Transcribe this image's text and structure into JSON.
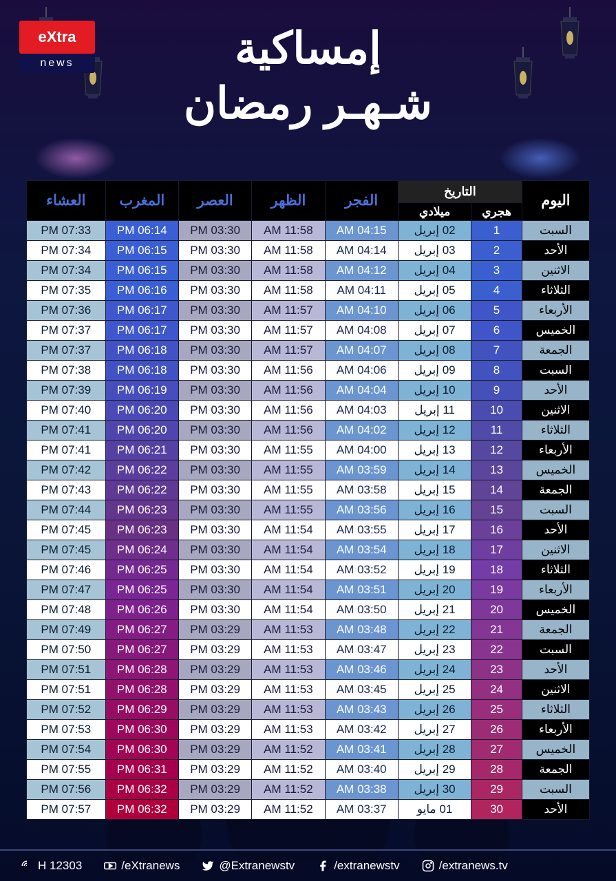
{
  "logo": {
    "top": "eXtra",
    "bottom": "news"
  },
  "title_line1": "إمساكية",
  "title_line2": "شـهـر رمضان",
  "headers": {
    "day": "اليوم",
    "date": "التاريخ",
    "hijri": "هجري",
    "miladi": "ميلادي",
    "fajr": "الفجر",
    "dhuhr": "الظهر",
    "asr": "العصر",
    "maghrib": "المغرب",
    "isha": "العشاء"
  },
  "month_april": "إبريل",
  "month_may": "مايو",
  "hijri_colors": [
    "#3c5fd0",
    "#3c5fd0",
    "#3c5fd0",
    "#3c5fd0",
    "#4055c8",
    "#4055c8",
    "#4253c0",
    "#4253c0",
    "#4550b8",
    "#4a4cb0",
    "#504aa8",
    "#5548a0",
    "#5a469c",
    "#604498",
    "#654294",
    "#6a409a",
    "#6f3ea0",
    "#743ca6",
    "#7a3aa0",
    "#7f389a",
    "#843694",
    "#89348e",
    "#8e3288",
    "#933082",
    "#982e7c",
    "#9d2c76",
    "#a22a70",
    "#a7286a",
    "#ac2664",
    "#b1245e"
  ],
  "maghrib_colors": [
    "#3a5ed4",
    "#3a5ed4",
    "#3a5ed4",
    "#3a5ed4",
    "#3f57cc",
    "#3f57cc",
    "#4252c4",
    "#4252c4",
    "#464dbc",
    "#4b49b4",
    "#5045ac",
    "#5541a4",
    "#5a3d9c",
    "#5f3994",
    "#64358c",
    "#693184",
    "#6f2d8c",
    "#742990",
    "#792594",
    "#7e218c",
    "#831d84",
    "#88197c",
    "#8d1574",
    "#92116c",
    "#970d64",
    "#9c095c",
    "#a10554",
    "#a6014c",
    "#ab0044",
    "#b0003c"
  ],
  "rows": [
    {
      "day": "السبت",
      "hijri": "1",
      "miladi": "02",
      "fajr": "04:15 AM",
      "dhuhr": "11:58 AM",
      "asr": "03:30 PM",
      "maghrib": "06:14 PM",
      "isha": "07:33 PM"
    },
    {
      "day": "الأحد",
      "hijri": "2",
      "miladi": "03",
      "fajr": "04:14 AM",
      "dhuhr": "11:58 AM",
      "asr": "03:30 PM",
      "maghrib": "06:15 PM",
      "isha": "07:34 PM"
    },
    {
      "day": "الاثنين",
      "hijri": "3",
      "miladi": "04",
      "fajr": "04:12 AM",
      "dhuhr": "11:58 AM",
      "asr": "03:30 PM",
      "maghrib": "06:15 PM",
      "isha": "07:34 PM"
    },
    {
      "day": "الثلاثاء",
      "hijri": "4",
      "miladi": "05",
      "fajr": "04:11 AM",
      "dhuhr": "11:58 AM",
      "asr": "03:30 PM",
      "maghrib": "06:16 PM",
      "isha": "07:35 PM"
    },
    {
      "day": "الأربعاء",
      "hijri": "5",
      "miladi": "06",
      "fajr": "04:10 AM",
      "dhuhr": "11:57 AM",
      "asr": "03:30 PM",
      "maghrib": "06:17 PM",
      "isha": "07:36 PM"
    },
    {
      "day": "الخميس",
      "hijri": "6",
      "miladi": "07",
      "fajr": "04:08 AM",
      "dhuhr": "11:57 AM",
      "asr": "03:30 PM",
      "maghrib": "06:17 PM",
      "isha": "07:37 PM"
    },
    {
      "day": "الجمعة",
      "hijri": "7",
      "miladi": "08",
      "fajr": "04:07 AM",
      "dhuhr": "11:57 AM",
      "asr": "03:30 PM",
      "maghrib": "06:18 PM",
      "isha": "07:37 PM"
    },
    {
      "day": "السبت",
      "hijri": "8",
      "miladi": "09",
      "fajr": "04:06 AM",
      "dhuhr": "11:56 AM",
      "asr": "03:30 PM",
      "maghrib": "06:18 PM",
      "isha": "07:38 PM"
    },
    {
      "day": "الأحد",
      "hijri": "9",
      "miladi": "10",
      "fajr": "04:04 AM",
      "dhuhr": "11:56 AM",
      "asr": "03:30 PM",
      "maghrib": "06:19 PM",
      "isha": "07:39 PM"
    },
    {
      "day": "الاثنين",
      "hijri": "10",
      "miladi": "11",
      "fajr": "04:03 AM",
      "dhuhr": "11:56 AM",
      "asr": "03:30 PM",
      "maghrib": "06:20 PM",
      "isha": "07:40 PM"
    },
    {
      "day": "الثلاثاء",
      "hijri": "11",
      "miladi": "12",
      "fajr": "04:02 AM",
      "dhuhr": "11:56 AM",
      "asr": "03:30 PM",
      "maghrib": "06:20 PM",
      "isha": "07:41 PM"
    },
    {
      "day": "الأربعاء",
      "hijri": "12",
      "miladi": "13",
      "fajr": "04:00 AM",
      "dhuhr": "11:55 AM",
      "asr": "03:30 PM",
      "maghrib": "06:21 PM",
      "isha": "07:41 PM"
    },
    {
      "day": "الخميس",
      "hijri": "13",
      "miladi": "14",
      "fajr": "03:59 AM",
      "dhuhr": "11:55 AM",
      "asr": "03:30 PM",
      "maghrib": "06:22 PM",
      "isha": "07:42 PM"
    },
    {
      "day": "الجمعة",
      "hijri": "14",
      "miladi": "15",
      "fajr": "03:58 AM",
      "dhuhr": "11:55 AM",
      "asr": "03:30 PM",
      "maghrib": "06:22 PM",
      "isha": "07:43 PM"
    },
    {
      "day": "السبت",
      "hijri": "15",
      "miladi": "16",
      "fajr": "03:56 AM",
      "dhuhr": "11:55 AM",
      "asr": "03:30 PM",
      "maghrib": "06:23 PM",
      "isha": "07:44 PM"
    },
    {
      "day": "الأحد",
      "hijri": "16",
      "miladi": "17",
      "fajr": "03:55 AM",
      "dhuhr": "11:54 AM",
      "asr": "03:30 PM",
      "maghrib": "06:23 PM",
      "isha": "07:45 PM"
    },
    {
      "day": "الاثنين",
      "hijri": "17",
      "miladi": "18",
      "fajr": "03:54 AM",
      "dhuhr": "11:54 AM",
      "asr": "03:30 PM",
      "maghrib": "06:24 PM",
      "isha": "07:45 PM"
    },
    {
      "day": "الثلاثاء",
      "hijri": "18",
      "miladi": "19",
      "fajr": "03:52 AM",
      "dhuhr": "11:54 AM",
      "asr": "03:30 PM",
      "maghrib": "06:25 PM",
      "isha": "07:46 PM"
    },
    {
      "day": "الأربعاء",
      "hijri": "19",
      "miladi": "20",
      "fajr": "03:51 AM",
      "dhuhr": "11:54 AM",
      "asr": "03:30 PM",
      "maghrib": "06:25 PM",
      "isha": "07:47 PM"
    },
    {
      "day": "الخميس",
      "hijri": "20",
      "miladi": "21",
      "fajr": "03:50 AM",
      "dhuhr": "11:54 AM",
      "asr": "03:30 PM",
      "maghrib": "06:26 PM",
      "isha": "07:48 PM"
    },
    {
      "day": "الجمعة",
      "hijri": "21",
      "miladi": "22",
      "fajr": "03:48 AM",
      "dhuhr": "11:53 AM",
      "asr": "03:29 PM",
      "maghrib": "06:27 PM",
      "isha": "07:49 PM"
    },
    {
      "day": "السبت",
      "hijri": "22",
      "miladi": "23",
      "fajr": "03:47 AM",
      "dhuhr": "11:53 AM",
      "asr": "03:29 PM",
      "maghrib": "06:27 PM",
      "isha": "07:50 PM"
    },
    {
      "day": "الأحد",
      "hijri": "23",
      "miladi": "24",
      "fajr": "03:46 AM",
      "dhuhr": "11:53 AM",
      "asr": "03:29 PM",
      "maghrib": "06:28 PM",
      "isha": "07:51 PM"
    },
    {
      "day": "الاثنين",
      "hijri": "24",
      "miladi": "25",
      "fajr": "03:45 AM",
      "dhuhr": "11:53 AM",
      "asr": "03:29 PM",
      "maghrib": "06:28 PM",
      "isha": "07:51 PM"
    },
    {
      "day": "الثلاثاء",
      "hijri": "25",
      "miladi": "26",
      "fajr": "03:43 AM",
      "dhuhr": "11:53 AM",
      "asr": "03:29 PM",
      "maghrib": "06:29 PM",
      "isha": "07:52 PM"
    },
    {
      "day": "الأربعاء",
      "hijri": "26",
      "miladi": "27",
      "fajr": "03:42 AM",
      "dhuhr": "11:53 AM",
      "asr": "03:29 PM",
      "maghrib": "06:30 PM",
      "isha": "07:53 PM"
    },
    {
      "day": "الخميس",
      "hijri": "27",
      "miladi": "28",
      "fajr": "03:41 AM",
      "dhuhr": "11:52 AM",
      "asr": "03:29 PM",
      "maghrib": "06:30 PM",
      "isha": "07:54 PM"
    },
    {
      "day": "الجمعة",
      "hijri": "28",
      "miladi": "29",
      "fajr": "03:40 AM",
      "dhuhr": "11:52 AM",
      "asr": "03:29 PM",
      "maghrib": "06:31 PM",
      "isha": "07:55 PM"
    },
    {
      "day": "السبت",
      "hijri": "29",
      "miladi": "30",
      "fajr": "03:38 AM",
      "dhuhr": "11:52 AM",
      "asr": "03:29 PM",
      "maghrib": "06:32 PM",
      "isha": "07:56 PM"
    },
    {
      "day": "الأحد",
      "hijri": "30",
      "miladi": "01",
      "may": true,
      "fajr": "03:37 AM",
      "dhuhr": "11:52 AM",
      "asr": "03:29 PM",
      "maghrib": "06:32 PM",
      "isha": "07:57 PM"
    }
  ],
  "footer": {
    "freq": "H 12303",
    "youtube": "/eXtranews",
    "twitter": "@Extranewstv",
    "facebook": "/extranewstv",
    "instagram": "/extranews.tv"
  },
  "col_widths": {
    "day": "12%",
    "hijri": "9%",
    "miladi": "13%",
    "fajr": "13%",
    "dhuhr": "13%",
    "asr": "13%",
    "maghrib": "13%",
    "isha": "14%"
  }
}
